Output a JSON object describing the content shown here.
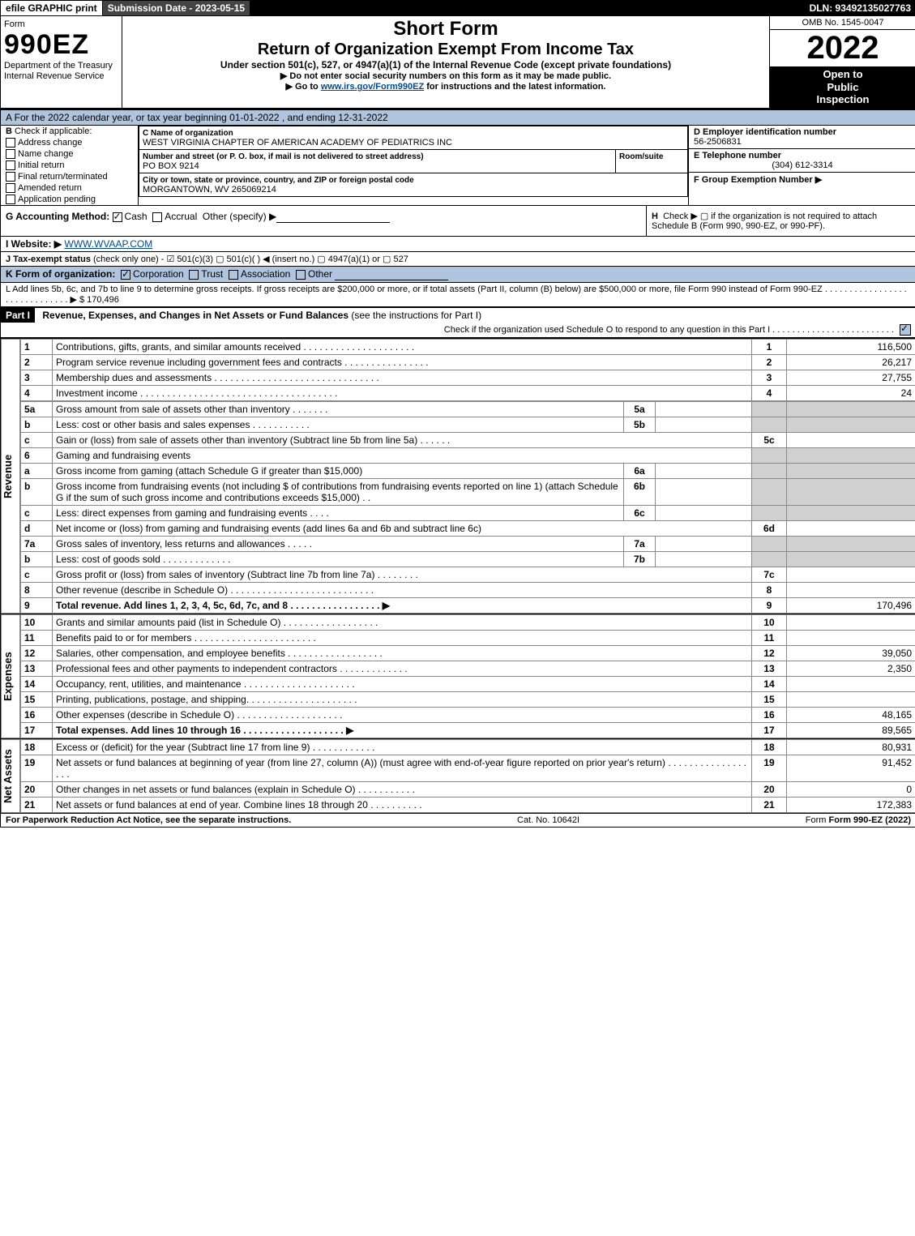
{
  "topbar": {
    "efile": "efile GRAPHIC print",
    "sub_date_label": "Submission Date - 2023-05-15",
    "dln": "DLN: 93492135027763"
  },
  "header": {
    "form_word": "Form",
    "form_number": "990EZ",
    "dept1": "Department of the Treasury",
    "dept2": "Internal Revenue Service",
    "short_form": "Short Form",
    "main_title": "Return of Organization Exempt From Income Tax",
    "under_section": "Under section 501(c), 527, or 4947(a)(1) of the Internal Revenue Code (except private foundations)",
    "ssn_note": "▶ Do not enter social security numbers on this form as it may be made public.",
    "goto": "▶ Go to ",
    "goto_link": "www.irs.gov/Form990EZ",
    "goto_tail": " for instructions and the latest information.",
    "omb": "OMB No. 1545-0047",
    "year": "2022",
    "open1": "Open to",
    "open2": "Public",
    "open3": "Inspection"
  },
  "line_a": {
    "text": "A  For the 2022 calendar year, or tax year beginning 01-01-2022 , and ending 12-31-2022"
  },
  "section_b": {
    "label": "B",
    "intro": "Check if applicable:",
    "addr_change": "Address change",
    "name_change": "Name change",
    "initial": "Initial return",
    "final": "Final return/terminated",
    "amended": "Amended return",
    "app_pending": "Application pending"
  },
  "section_c": {
    "c_lbl": "C",
    "name_lbl": "Name of organization",
    "name_val": "WEST VIRGINIA CHAPTER OF AMERICAN ACADEMY OF PEDIATRICS INC",
    "street_lbl": "Number and street (or P. O. box, if mail is not delivered to street address)",
    "room_lbl": "Room/suite",
    "street_val": "PO BOX 9214",
    "city_lbl": "City or town, state or province, country, and ZIP or foreign postal code",
    "city_val": "MORGANTOWN, WV  265069214"
  },
  "section_right": {
    "d_lbl": "D Employer identification number",
    "d_val": "56-2506831",
    "e_lbl": "E Telephone number",
    "e_val": "(304) 612-3314",
    "f_lbl": "F Group Exemption Number  ▶"
  },
  "rows_g_to_l": {
    "g_label": "G Accounting Method:",
    "g_cash": "Cash",
    "g_accrual": "Accrual",
    "g_other": "Other (specify) ▶",
    "h_label": "H",
    "h_text": "Check ▶  ▢  if the organization is not required to attach Schedule B (Form 990, 990-EZ, or 990-PF).",
    "i_label": "I Website: ▶",
    "i_val": "WWW.WVAAP.COM",
    "j_label": "J Tax-exempt status",
    "j_tail": " (check only one) - ☑ 501(c)(3)  ▢ 501(c)(  ) ◀ (insert no.)  ▢ 4947(a)(1) or  ▢ 527",
    "k_label": "K Form of organization:",
    "k_corp": "Corporation",
    "k_trust": "Trust",
    "k_assoc": "Association",
    "k_other": "Other",
    "l_text": "L Add lines 5b, 6c, and 7b to line 9 to determine gross receipts. If gross receipts are $200,000 or more, or if total assets (Part II, column (B) below) are $500,000 or more, file Form 990 instead of Form 990-EZ . . . . . . . . . . . . . . . . . . . . . . . . . . . . . . ▶ $ 170,496"
  },
  "part1": {
    "label": "Part I",
    "title": "Revenue, Expenses, and Changes in Net Assets or Fund Balances",
    "title_tail": " (see the instructions for Part I)",
    "check_line": "Check if the organization used Schedule O to respond to any question in this Part I . . . . . . . . . . . . . . . . . . . . . . . . ."
  },
  "revenue": {
    "vlabel": "Revenue",
    "rows": [
      {
        "n": "1",
        "desc": "Contributions, gifts, grants, and similar amounts received . . . . . . . . . . . . . . . . . . . . .",
        "rn": "1",
        "amt": "116,500"
      },
      {
        "n": "2",
        "desc": "Program service revenue including government fees and contracts . . . . . . . . . . . . . . . .",
        "rn": "2",
        "amt": "26,217"
      },
      {
        "n": "3",
        "desc": "Membership dues and assessments . . . . . . . . . . . . . . . . . . . . . . . . . . . . . . .",
        "rn": "3",
        "amt": "27,755"
      },
      {
        "n": "4",
        "desc": "Investment income . . . . . . . . . . . . . . . . . . . . . . . . . . . . . . . . . . . . .",
        "rn": "4",
        "amt": "24"
      }
    ],
    "r5a": {
      "n": "5a",
      "desc": "Gross amount from sale of assets other than inventory . . . . . . .",
      "box": "5a"
    },
    "r5b": {
      "n": "b",
      "desc": "Less: cost or other basis and sales expenses . . . . . . . . . . .",
      "box": "5b"
    },
    "r5c": {
      "n": "c",
      "desc": "Gain or (loss) from sale of assets other than inventory (Subtract line 5b from line 5a) . . . . . .",
      "rn": "5c"
    },
    "r6": {
      "n": "6",
      "desc": "Gaming and fundraising events"
    },
    "r6a": {
      "n": "a",
      "desc": "Gross income from gaming (attach Schedule G if greater than $15,000)",
      "box": "6a"
    },
    "r6b": {
      "n": "b",
      "desc": "Gross income from fundraising events (not including $                  of contributions from fundraising events reported on line 1) (attach Schedule G if the sum of such gross income and contributions exceeds $15,000)    .  .",
      "box": "6b"
    },
    "r6c": {
      "n": "c",
      "desc": "Less: direct expenses from gaming and fundraising events  . . . .",
      "box": "6c"
    },
    "r6d": {
      "n": "d",
      "desc": "Net income or (loss) from gaming and fundraising events (add lines 6a and 6b and subtract line 6c)",
      "rn": "6d"
    },
    "r7a": {
      "n": "7a",
      "desc": "Gross sales of inventory, less returns and allowances  .  .  .  .  .",
      "box": "7a"
    },
    "r7b": {
      "n": "b",
      "desc": "Less: cost of goods sold           .  .  .  .  .  .  .  .  .  .  .  .  .",
      "box": "7b"
    },
    "r7c": {
      "n": "c",
      "desc": "Gross profit or (loss) from sales of inventory (Subtract line 7b from line 7a)  .  .  .  .  .  .  .  .",
      "rn": "7c"
    },
    "r8": {
      "n": "8",
      "desc": "Other revenue (describe in Schedule O) . . . . . . . . . . . . . . . . . . . . . . . . . . .",
      "rn": "8"
    },
    "r9": {
      "n": "9",
      "desc": "Total revenue. Add lines 1, 2, 3, 4, 5c, 6d, 7c, and 8   .  .  .  .  .  .  .  .  .  .  .  .  .  .  .  .  .     ▶",
      "rn": "9",
      "amt": "170,496",
      "bold": true
    }
  },
  "expenses": {
    "vlabel": "Expenses",
    "rows": [
      {
        "n": "10",
        "desc": "Grants and similar amounts paid (list in Schedule O) .  .  .  .  .  .  .  .  .  .  .  .  .  .  .  .  .  .",
        "rn": "10"
      },
      {
        "n": "11",
        "desc": "Benefits paid to or for members       .  .  .  .  .  .  .  .  .  .  .  .  .  .  .  .  .  .  .  .  .  .  .",
        "rn": "11"
      },
      {
        "n": "12",
        "desc": "Salaries, other compensation, and employee benefits .  .  .  .  .  .  .  .  .  .  .  .  .  .  .  .  .  .",
        "rn": "12",
        "amt": "39,050"
      },
      {
        "n": "13",
        "desc": "Professional fees and other payments to independent contractors .  .  .  .  .  .  .  .  .  .  .  .  .",
        "rn": "13",
        "amt": "2,350"
      },
      {
        "n": "14",
        "desc": "Occupancy, rent, utilities, and maintenance .  .  .  .  .  .  .  .  .  .  .  .  .  .  .  .  .  .  .  .  .",
        "rn": "14"
      },
      {
        "n": "15",
        "desc": "Printing, publications, postage, and shipping.  .  .  .  .  .  .  .  .  .  .  .  .  .  .  .  .  .  .  .  .",
        "rn": "15"
      },
      {
        "n": "16",
        "desc": "Other expenses (describe in Schedule O)      .  .  .  .  .  .  .  .  .  .  .  .  .  .  .  .  .  .  .  .",
        "rn": "16",
        "amt": "48,165"
      },
      {
        "n": "17",
        "desc": "Total expenses. Add lines 10 through 16       .  .  .  .  .  .  .  .  .  .  .  .  .  .  .  .  .  .  .     ▶",
        "rn": "17",
        "amt": "89,565",
        "bold": true
      }
    ]
  },
  "netassets": {
    "vlabel": "Net Assets",
    "rows": [
      {
        "n": "18",
        "desc": "Excess or (deficit) for the year (Subtract line 17 from line 9)        .  .  .  .  .  .  .  .  .  .  .  .",
        "rn": "18",
        "amt": "80,931"
      },
      {
        "n": "19",
        "desc": "Net assets or fund balances at beginning of year (from line 27, column (A)) (must agree with end-of-year figure reported on prior year's return) .  .  .  .  .  .  .  .  .  .  .  .  .  .  .  .  .  .",
        "rn": "19",
        "amt": "91,452"
      },
      {
        "n": "20",
        "desc": "Other changes in net assets or fund balances (explain in Schedule O) .  .  .  .  .  .  .  .  .  .  .",
        "rn": "20",
        "amt": "0"
      },
      {
        "n": "21",
        "desc": "Net assets or fund balances at end of year. Combine lines 18 through 20 .  .  .  .  .  .  .  .  .  .",
        "rn": "21",
        "amt": "172,383"
      }
    ]
  },
  "footer": {
    "left": "For Paperwork Reduction Act Notice, see the separate instructions.",
    "mid": "Cat. No. 10642I",
    "right": "Form 990-EZ (2022)"
  },
  "colors": {
    "header_blue": "#b0c4de",
    "shade": "#d0d0d0",
    "link": "#004b8d"
  }
}
